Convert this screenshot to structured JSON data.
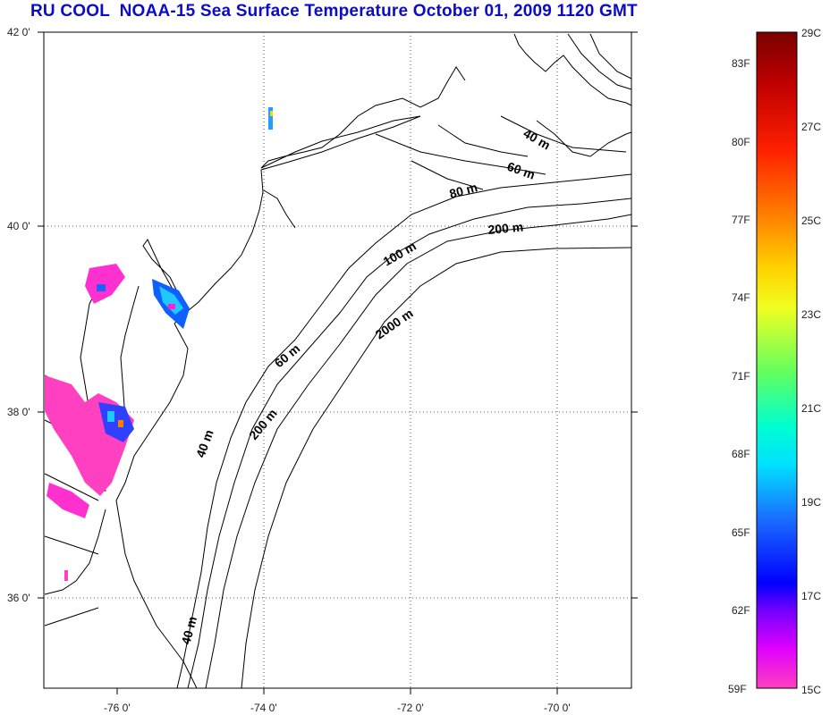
{
  "title": "RU COOL  NOAA-15 Sea Surface Temperature October 01, 2009 1120 GMT",
  "map": {
    "lat_labels": [
      "42 0'",
      "40 0'",
      "38 0'",
      "36 0'"
    ],
    "lon_labels": [
      "-76 0'",
      "-74 0'",
      "-72 0'",
      "-70 0'"
    ],
    "grid": "dotted",
    "depth_contour_labels": [
      "40 m",
      "60 m",
      "80 m",
      "200 m",
      "100 m",
      "2000 m",
      "60 m",
      "200 m",
      "40 m",
      "40 m"
    ]
  },
  "colorbar": {
    "fahrenheit_labels": [
      "83F",
      "80F",
      "77F",
      "74F",
      "71F",
      "68F",
      "65F",
      "62F",
      "59F"
    ],
    "celsius_labels": [
      "29C",
      "27C",
      "25C",
      "23C",
      "21C",
      "19C",
      "17C",
      "15C"
    ],
    "colors": [
      "#7a0000",
      "#d80000",
      "#ff3000",
      "#ff8000",
      "#ffd200",
      "#f0ff20",
      "#80ff40",
      "#20ff90",
      "#00ffff",
      "#00a0ff",
      "#1040ff",
      "#0000ff",
      "#8a00ff",
      "#ff00ff",
      "#ff40c0"
    ]
  }
}
